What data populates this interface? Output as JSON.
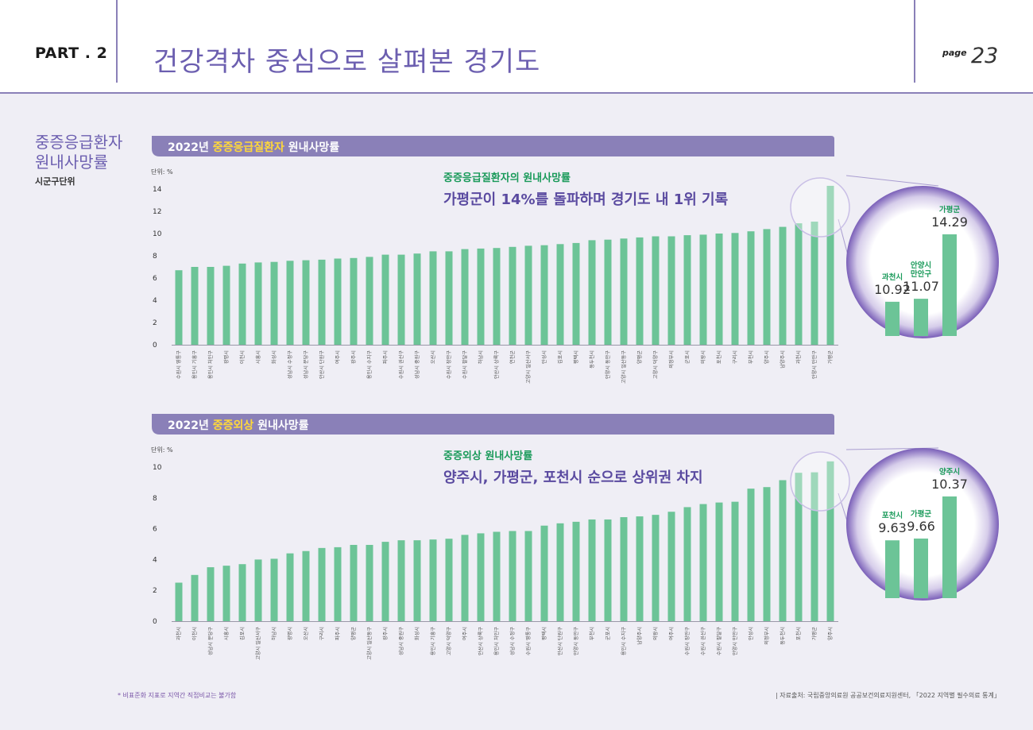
{
  "header": {
    "part": "PART . 2",
    "title": "건강격차 중심으로 살펴본 경기도",
    "page_word": "page",
    "page_number": "23"
  },
  "side": {
    "title": "중증응급환자\n원내사망률",
    "subtitle": "시군구단위"
  },
  "colors": {
    "bar": "#6cc497",
    "banner": "#8a80b8",
    "highlight_text": "#ffd83a",
    "green_text": "#1a9a5a",
    "purple_text": "#5a4aa0"
  },
  "chart_data": [
    {
      "type": "bar",
      "title_parts": [
        "2022년 ",
        "중증응급질환자",
        " 원내사망률"
      ],
      "unit_label": "단위: %",
      "ylim": [
        0,
        14
      ],
      "yticks": [
        0,
        2,
        4,
        6,
        8,
        10,
        12,
        14
      ],
      "categories": [
        "수원시 영통구",
        "용인시 기흥구",
        "용인시 처인구",
        "광명시",
        "이천시",
        "시흥시",
        "화성시",
        "성남시 수정구",
        "성남시 분당구",
        "안산시 단원구",
        "여주시",
        "광주시",
        "용인시 수지구",
        "파주시",
        "수원시 권선구",
        "성남시 중원구",
        "오산시",
        "수원시 장안구",
        "수원시 팔달구",
        "하남시",
        "안산시 상록구",
        "연천군",
        "고양시 일산서구",
        "안성시",
        "김포시",
        "평택시",
        "동두천시",
        "안양시 동안구",
        "고양시 일산동구",
        "양평군",
        "고양시 덕양구",
        "의정부시",
        "군포시",
        "의왕시",
        "포천시",
        "구리시",
        "부천시",
        "양주시",
        "남양주시",
        "과천시",
        "안양시 만안구",
        "가평군"
      ],
      "values": [
        6.7,
        7.0,
        7.0,
        7.1,
        7.3,
        7.4,
        7.45,
        7.55,
        7.6,
        7.65,
        7.75,
        7.8,
        7.9,
        8.1,
        8.1,
        8.2,
        8.4,
        8.4,
        8.6,
        8.65,
        8.7,
        8.8,
        8.9,
        8.95,
        9.05,
        9.15,
        9.4,
        9.45,
        9.55,
        9.65,
        9.75,
        9.75,
        9.85,
        9.9,
        10.0,
        10.05,
        10.2,
        10.4,
        10.6,
        10.92,
        11.07,
        14.29
      ],
      "annotation_title": "중증응급질환자의 원내사망률",
      "annotation_text": "가평군이 14%를 돌파하며 경기도 내 1위 기록",
      "zoom": [
        {
          "name": "과천시",
          "value": "10.92",
          "v": 10.92
        },
        {
          "name": "안양시\n만안구",
          "value": "11.07",
          "v": 11.07
        },
        {
          "name": "가평군",
          "value": "14.29",
          "v": 14.29
        }
      ]
    },
    {
      "type": "bar",
      "title_parts": [
        "2022년 ",
        "중증외상",
        " 원내사망률"
      ],
      "unit_label": "단위: %",
      "ylim": [
        0,
        10
      ],
      "yticks": [
        0,
        2,
        4,
        6,
        8,
        10
      ],
      "categories": [
        "과천시",
        "이천시",
        "성남시 분당구",
        "시흥시",
        "김포시",
        "고양시 일산서구",
        "하남시",
        "광명시",
        "오산시",
        "구리시",
        "파주시",
        "양평군",
        "고양시 일산동구",
        "광주시",
        "성남시 중원구",
        "화성시",
        "용인시 기흥구",
        "고양시 덕양구",
        "여주시",
        "안산시 상록구",
        "용인시 처인구",
        "성남시 수정구",
        "수원시 영통구",
        "평택시",
        "안산시 단원구",
        "안양시 동안구",
        "부천시",
        "군포시",
        "용인시 수지구",
        "남양주시",
        "의왕시",
        "여주시",
        "수원시 장안구",
        "수원시 권선구",
        "수원시 팔달구",
        "안양시 만안구",
        "안성시",
        "의정부시",
        "동두천시",
        "포천시",
        "가평군",
        "양주시"
      ],
      "values": [
        2.5,
        3.0,
        3.5,
        3.6,
        3.7,
        4.0,
        4.05,
        4.4,
        4.55,
        4.75,
        4.8,
        4.95,
        4.95,
        5.15,
        5.25,
        5.25,
        5.3,
        5.35,
        5.6,
        5.7,
        5.8,
        5.85,
        5.85,
        6.2,
        6.35,
        6.45,
        6.6,
        6.6,
        6.75,
        6.8,
        6.9,
        7.1,
        7.4,
        7.6,
        7.7,
        7.75,
        8.6,
        8.7,
        9.15,
        9.63,
        9.66,
        10.37
      ],
      "annotation_title": "중증외상 원내사망률",
      "annotation_text": "양주시, 가평군, 포천시 순으로 상위권 차지",
      "zoom": [
        {
          "name": "포천시",
          "value": "9.63",
          "v": 9.63
        },
        {
          "name": "가평군",
          "value": "9.66",
          "v": 9.66
        },
        {
          "name": "양주시",
          "value": "10.37",
          "v": 10.37
        }
      ]
    }
  ],
  "footer": {
    "footnote": "* 비표준화 지표로 지역간 직접비교는 불가함",
    "source": "| 자료출처: 국립중앙의료원 공공보건의료지원센터, 「2022 지역별 필수의료 통계」"
  }
}
